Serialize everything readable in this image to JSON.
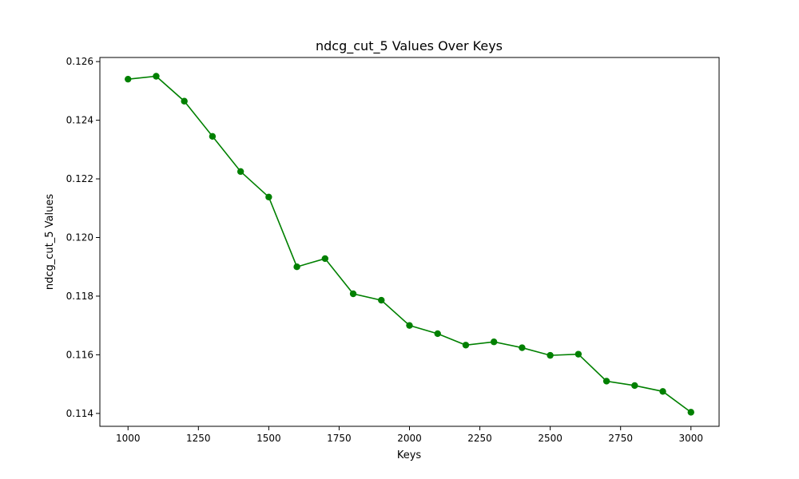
{
  "chart_data": {
    "type": "line",
    "title": "ndcg_cut_5 Values Over Keys",
    "xlabel": "Keys",
    "ylabel": "ndcg_cut_5 Values",
    "x": [
      1000,
      1100,
      1200,
      1300,
      1400,
      1500,
      1600,
      1700,
      1800,
      1900,
      2000,
      2100,
      2200,
      2300,
      2400,
      2500,
      2600,
      2700,
      2800,
      2900,
      3000
    ],
    "series": [
      {
        "values": [
          0.1254,
          0.1255,
          0.12465,
          0.12345,
          0.12225,
          0.12138,
          0.119,
          0.11928,
          0.11808,
          0.11786,
          0.117,
          0.11672,
          0.11633,
          0.11644,
          0.11624,
          0.11598,
          0.11602,
          0.1151,
          0.11495,
          0.11475,
          0.11404
        ],
        "color": "#008000",
        "marker": "circle"
      }
    ],
    "xlim": [
      900,
      3100
    ],
    "ylim": [
      0.11356,
      0.12614
    ],
    "xticks": [
      1000,
      1250,
      1500,
      1750,
      2000,
      2250,
      2500,
      2750,
      3000
    ],
    "xtick_labels": [
      "1000",
      "1250",
      "1500",
      "1750",
      "2000",
      "2250",
      "2500",
      "2750",
      "3000"
    ],
    "yticks": [
      0.114,
      0.116,
      0.118,
      0.12,
      0.122,
      0.124,
      0.126
    ],
    "ytick_labels": [
      "0.114",
      "0.116",
      "0.118",
      "0.120",
      "0.122",
      "0.124",
      "0.126"
    ],
    "grid": false,
    "legend": false
  }
}
